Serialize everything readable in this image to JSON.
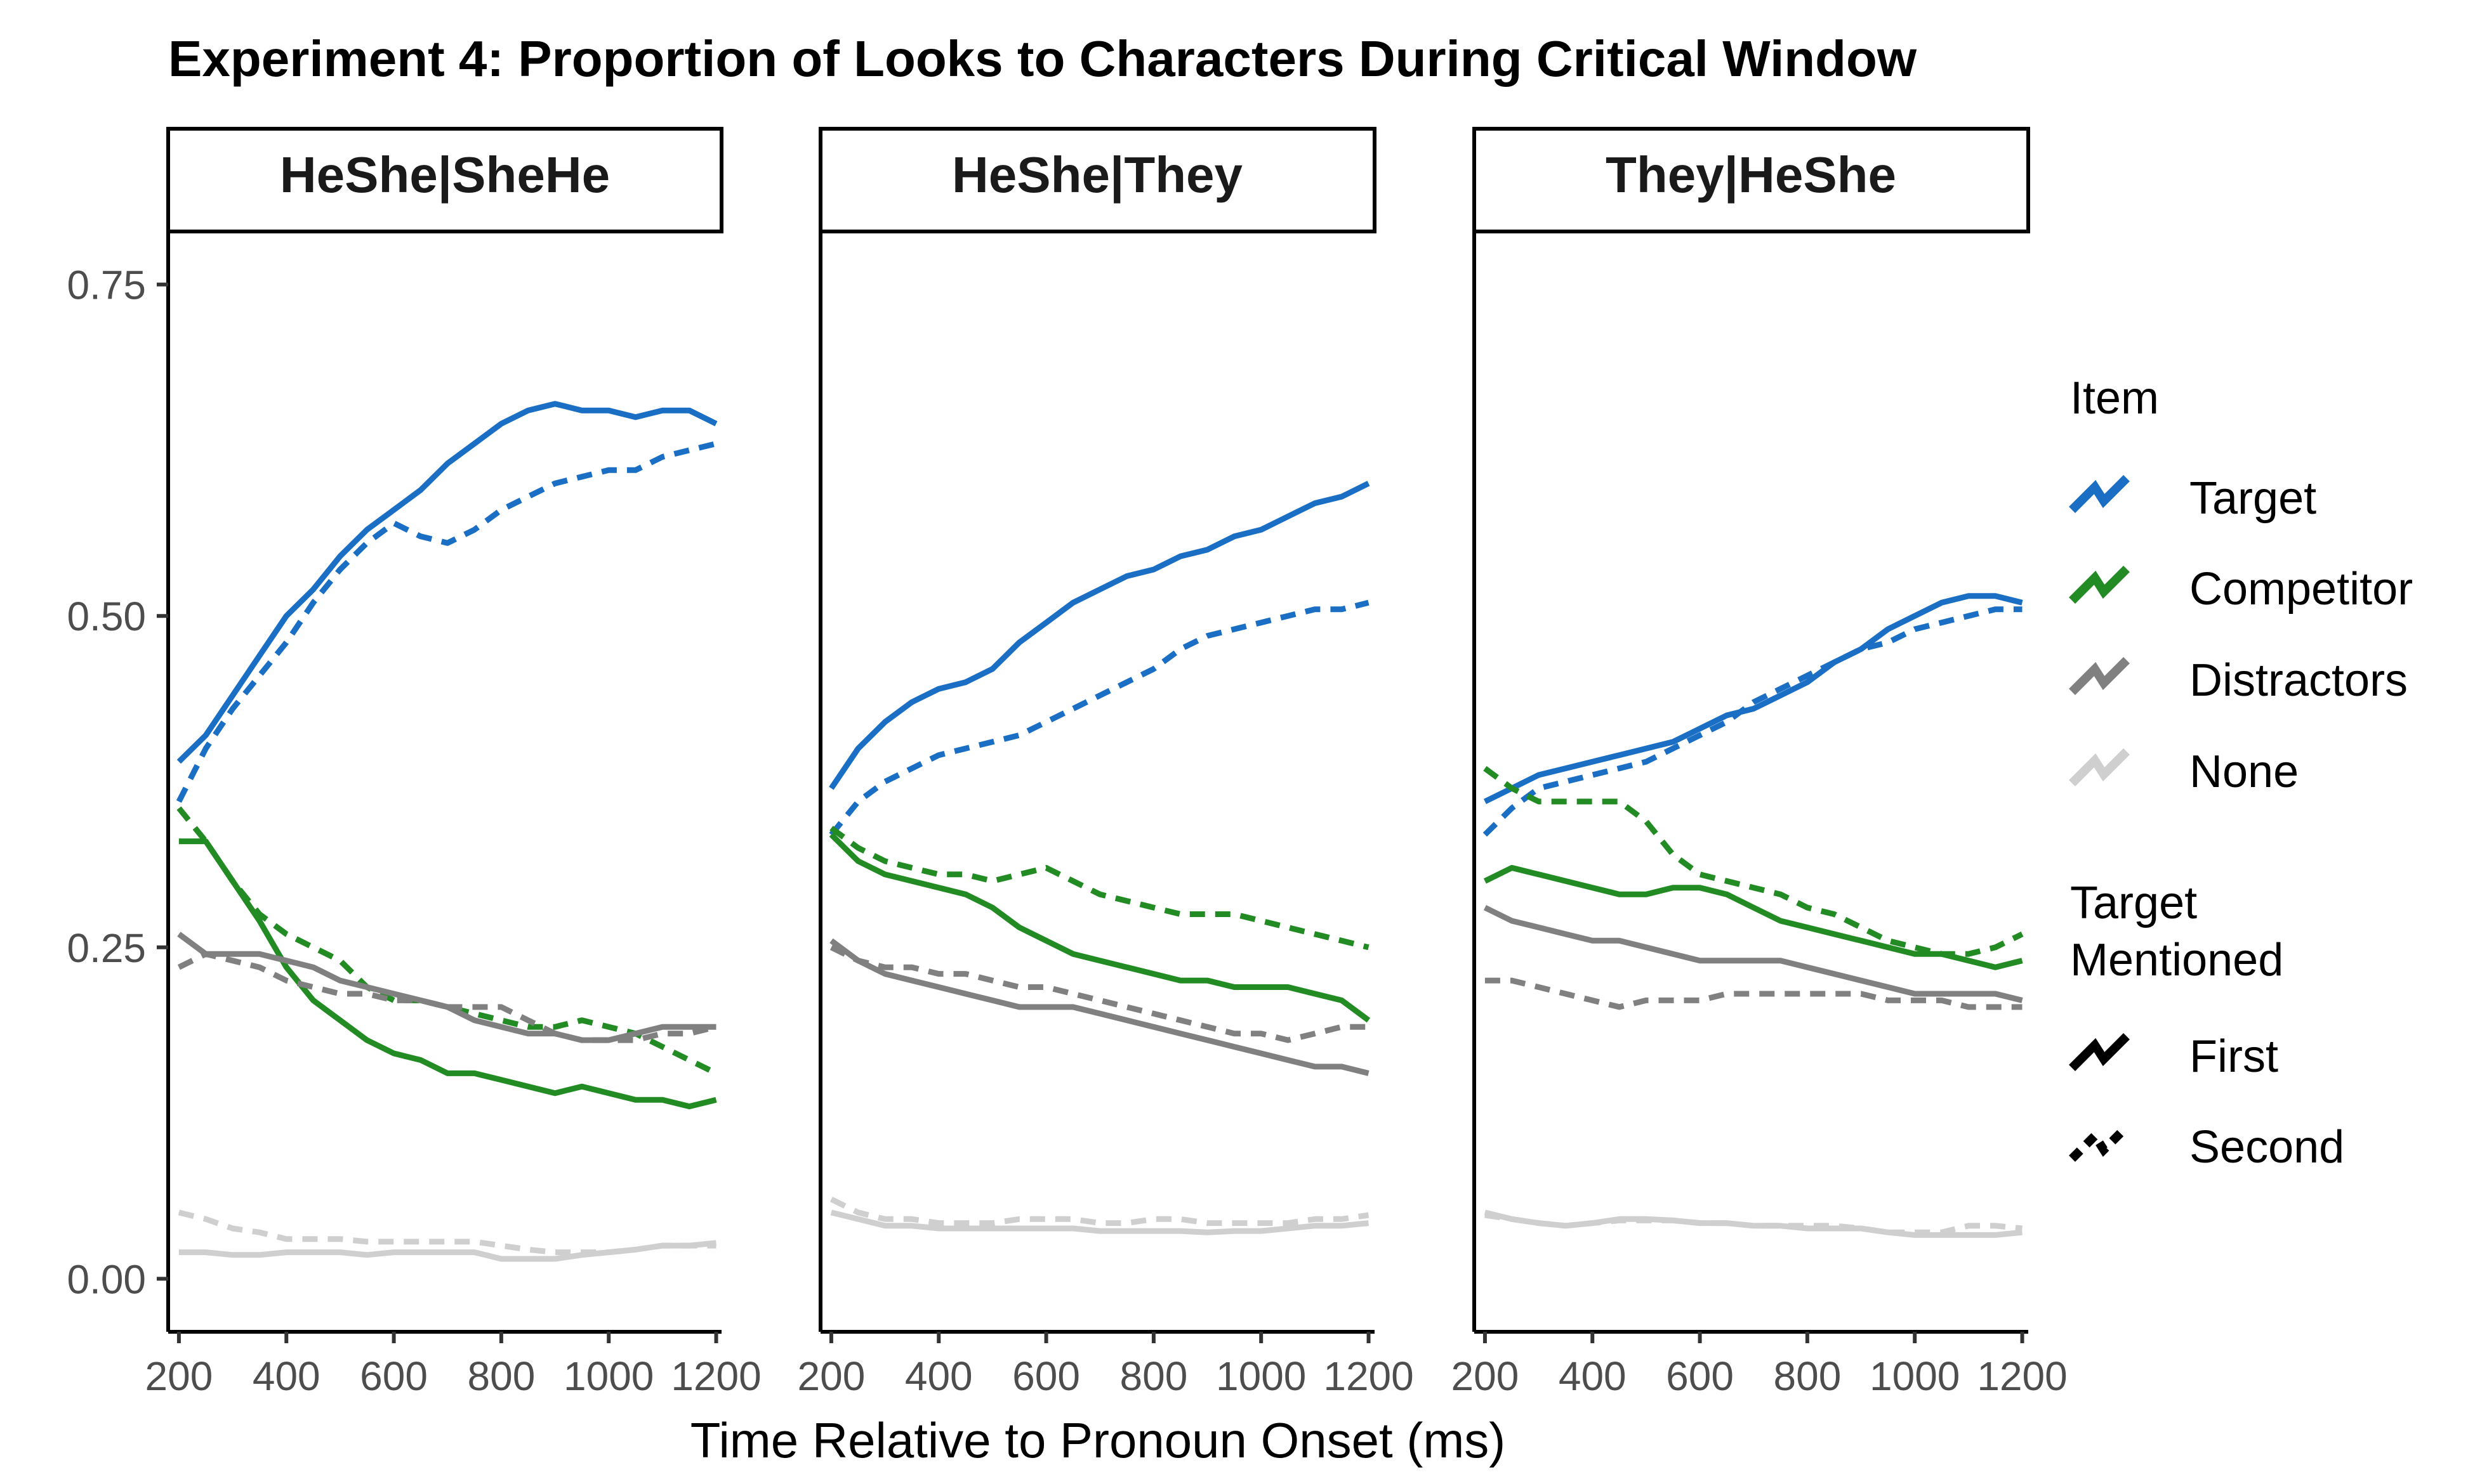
{
  "chart_data": {
    "type": "line",
    "title": "Experiment 4: Proportion of Looks to Characters During Critical Window",
    "xlabel": "Time Relative to Pronoun Onset (ms)",
    "ylabel": "",
    "xlim": [
      180,
      1210
    ],
    "ylim": [
      -0.04,
      0.79
    ],
    "x_ticks": [
      200,
      400,
      600,
      800,
      1000,
      1200
    ],
    "x_tick_labels": [
      "200",
      "400",
      "600",
      "800",
      "1000",
      "1200"
    ],
    "y_ticks": [
      0.0,
      0.25,
      0.5,
      0.75
    ],
    "y_tick_labels": [
      "0.00",
      "0.25",
      "0.50",
      "0.75"
    ],
    "grid": false,
    "legend_position": "right",
    "legend": {
      "item_title": "Item",
      "items": [
        {
          "label": "Target",
          "color": "#1a6fc4"
        },
        {
          "label": "Competitor",
          "color": "#238b23"
        },
        {
          "label": "Distractors",
          "color": "#808080"
        },
        {
          "label": "None",
          "color": "#cfcfcf"
        }
      ],
      "mention_title_line1": "Target",
      "mention_title_line2": "Mentioned",
      "mention": [
        {
          "label": "First",
          "dash": "solid"
        },
        {
          "label": "Second",
          "dash": "dashed"
        }
      ]
    },
    "x": [
      200,
      250,
      300,
      350,
      400,
      450,
      500,
      550,
      600,
      650,
      700,
      750,
      800,
      850,
      900,
      950,
      1000,
      1050,
      1100,
      1150,
      1200
    ],
    "panels": [
      {
        "label": "HeShe|SheHe",
        "series": [
          {
            "item": "Target",
            "mentioned": "First",
            "values": [
              0.39,
              0.41,
              0.44,
              0.47,
              0.5,
              0.52,
              0.545,
              0.565,
              0.58,
              0.595,
              0.615,
              0.63,
              0.645,
              0.655,
              0.66,
              0.655,
              0.655,
              0.65,
              0.655,
              0.655,
              0.645
            ]
          },
          {
            "item": "Target",
            "mentioned": "Second",
            "values": [
              0.36,
              0.4,
              0.43,
              0.455,
              0.48,
              0.51,
              0.535,
              0.555,
              0.57,
              0.56,
              0.555,
              0.565,
              0.58,
              0.59,
              0.6,
              0.605,
              0.61,
              0.61,
              0.62,
              0.625,
              0.63
            ]
          },
          {
            "item": "Competitor",
            "mentioned": "First",
            "values": [
              0.33,
              0.33,
              0.3,
              0.27,
              0.235,
              0.21,
              0.195,
              0.18,
              0.17,
              0.165,
              0.155,
              0.155,
              0.15,
              0.145,
              0.14,
              0.145,
              0.14,
              0.135,
              0.135,
              0.13,
              0.135
            ]
          },
          {
            "item": "Competitor",
            "mentioned": "Second",
            "values": [
              0.355,
              0.33,
              0.3,
              0.275,
              0.26,
              0.25,
              0.24,
              0.22,
              0.21,
              0.21,
              0.205,
              0.2,
              0.195,
              0.19,
              0.19,
              0.195,
              0.19,
              0.185,
              0.175,
              0.165,
              0.155
            ]
          },
          {
            "item": "Distractors",
            "mentioned": "First",
            "values": [
              0.26,
              0.245,
              0.245,
              0.245,
              0.24,
              0.235,
              0.225,
              0.22,
              0.215,
              0.21,
              0.205,
              0.195,
              0.19,
              0.185,
              0.185,
              0.18,
              0.18,
              0.185,
              0.19,
              0.19,
              0.19
            ]
          },
          {
            "item": "Distractors",
            "mentioned": "Second",
            "values": [
              0.235,
              0.245,
              0.24,
              0.235,
              0.225,
              0.22,
              0.215,
              0.215,
              0.21,
              0.21,
              0.205,
              0.205,
              0.205,
              0.195,
              0.185,
              0.18,
              0.18,
              0.18,
              0.185,
              0.185,
              0.19
            ]
          },
          {
            "item": "None",
            "mentioned": "First",
            "values": [
              0.02,
              0.02,
              0.018,
              0.018,
              0.02,
              0.02,
              0.02,
              0.018,
              0.02,
              0.02,
              0.02,
              0.02,
              0.015,
              0.015,
              0.015,
              0.018,
              0.02,
              0.022,
              0.025,
              0.025,
              0.027
            ]
          },
          {
            "item": "None",
            "mentioned": "Second",
            "values": [
              0.05,
              0.045,
              0.038,
              0.035,
              0.03,
              0.03,
              0.03,
              0.028,
              0.028,
              0.028,
              0.028,
              0.028,
              0.025,
              0.022,
              0.02,
              0.02,
              0.02,
              0.022,
              0.025,
              0.025,
              0.025
            ]
          }
        ]
      },
      {
        "label": "HeShe|They",
        "series": [
          {
            "item": "Target",
            "mentioned": "First",
            "values": [
              0.37,
              0.4,
              0.42,
              0.435,
              0.445,
              0.45,
              0.46,
              0.48,
              0.495,
              0.51,
              0.52,
              0.53,
              0.535,
              0.545,
              0.55,
              0.56,
              0.565,
              0.575,
              0.585,
              0.59,
              0.6
            ]
          },
          {
            "item": "Target",
            "mentioned": "Second",
            "values": [
              0.335,
              0.36,
              0.375,
              0.385,
              0.395,
              0.4,
              0.405,
              0.41,
              0.42,
              0.43,
              0.44,
              0.45,
              0.46,
              0.475,
              0.485,
              0.49,
              0.495,
              0.5,
              0.505,
              0.505,
              0.51
            ]
          },
          {
            "item": "Competitor",
            "mentioned": "First",
            "values": [
              0.335,
              0.315,
              0.305,
              0.3,
              0.295,
              0.29,
              0.28,
              0.265,
              0.255,
              0.245,
              0.24,
              0.235,
              0.23,
              0.225,
              0.225,
              0.22,
              0.22,
              0.22,
              0.215,
              0.21,
              0.195
            ]
          },
          {
            "item": "Competitor",
            "mentioned": "Second",
            "values": [
              0.34,
              0.325,
              0.315,
              0.31,
              0.305,
              0.305,
              0.3,
              0.305,
              0.31,
              0.3,
              0.29,
              0.285,
              0.28,
              0.275,
              0.275,
              0.275,
              0.27,
              0.265,
              0.26,
              0.255,
              0.25
            ]
          },
          {
            "item": "Distractors",
            "mentioned": "First",
            "values": [
              0.255,
              0.24,
              0.23,
              0.225,
              0.22,
              0.215,
              0.21,
              0.205,
              0.205,
              0.205,
              0.2,
              0.195,
              0.19,
              0.185,
              0.18,
              0.175,
              0.17,
              0.165,
              0.16,
              0.16,
              0.155
            ]
          },
          {
            "item": "Distractors",
            "mentioned": "Second",
            "values": [
              0.25,
              0.24,
              0.235,
              0.235,
              0.23,
              0.23,
              0.225,
              0.22,
              0.22,
              0.215,
              0.21,
              0.205,
              0.2,
              0.195,
              0.19,
              0.185,
              0.185,
              0.18,
              0.185,
              0.19,
              0.19
            ]
          },
          {
            "item": "None",
            "mentioned": "First",
            "values": [
              0.05,
              0.045,
              0.04,
              0.04,
              0.038,
              0.038,
              0.038,
              0.038,
              0.038,
              0.038,
              0.036,
              0.036,
              0.036,
              0.036,
              0.035,
              0.036,
              0.036,
              0.038,
              0.04,
              0.04,
              0.042
            ]
          },
          {
            "item": "None",
            "mentioned": "Second",
            "values": [
              0.06,
              0.05,
              0.045,
              0.045,
              0.042,
              0.042,
              0.042,
              0.045,
              0.045,
              0.045,
              0.042,
              0.042,
              0.045,
              0.045,
              0.042,
              0.042,
              0.042,
              0.042,
              0.045,
              0.045,
              0.048
            ]
          }
        ]
      },
      {
        "label": "They|HeShe",
        "series": [
          {
            "item": "Target",
            "mentioned": "First",
            "values": [
              0.36,
              0.37,
              0.38,
              0.385,
              0.39,
              0.395,
              0.4,
              0.405,
              0.415,
              0.425,
              0.43,
              0.44,
              0.45,
              0.465,
              0.475,
              0.49,
              0.5,
              0.51,
              0.515,
              0.515,
              0.51
            ]
          },
          {
            "item": "Target",
            "mentioned": "Second",
            "values": [
              0.335,
              0.355,
              0.37,
              0.375,
              0.38,
              0.385,
              0.39,
              0.4,
              0.41,
              0.42,
              0.435,
              0.445,
              0.455,
              0.465,
              0.475,
              0.48,
              0.49,
              0.495,
              0.5,
              0.505,
              0.505
            ]
          },
          {
            "item": "Competitor",
            "mentioned": "First",
            "values": [
              0.3,
              0.31,
              0.305,
              0.3,
              0.295,
              0.29,
              0.29,
              0.295,
              0.295,
              0.29,
              0.28,
              0.27,
              0.265,
              0.26,
              0.255,
              0.25,
              0.245,
              0.245,
              0.24,
              0.235,
              0.24
            ]
          },
          {
            "item": "Competitor",
            "mentioned": "Second",
            "values": [
              0.385,
              0.37,
              0.36,
              0.36,
              0.36,
              0.36,
              0.345,
              0.32,
              0.305,
              0.3,
              0.295,
              0.29,
              0.28,
              0.275,
              0.265,
              0.255,
              0.25,
              0.245,
              0.245,
              0.25,
              0.26
            ]
          },
          {
            "item": "Distractors",
            "mentioned": "First",
            "values": [
              0.28,
              0.27,
              0.265,
              0.26,
              0.255,
              0.255,
              0.25,
              0.245,
              0.24,
              0.24,
              0.24,
              0.24,
              0.235,
              0.23,
              0.225,
              0.22,
              0.215,
              0.215,
              0.215,
              0.215,
              0.21
            ]
          },
          {
            "item": "Distractors",
            "mentioned": "Second",
            "values": [
              0.225,
              0.225,
              0.22,
              0.215,
              0.21,
              0.205,
              0.21,
              0.21,
              0.21,
              0.215,
              0.215,
              0.215,
              0.215,
              0.215,
              0.215,
              0.21,
              0.21,
              0.21,
              0.205,
              0.205,
              0.205
            ]
          },
          {
            "item": "None",
            "mentioned": "First",
            "values": [
              0.05,
              0.045,
              0.042,
              0.04,
              0.042,
              0.045,
              0.045,
              0.044,
              0.042,
              0.042,
              0.04,
              0.04,
              0.038,
              0.038,
              0.038,
              0.035,
              0.033,
              0.033,
              0.033,
              0.033,
              0.035
            ]
          },
          {
            "item": "None",
            "mentioned": "Second",
            "values": [
              0.048,
              0.045,
              0.042,
              0.04,
              0.042,
              0.044,
              0.044,
              0.044,
              0.042,
              0.042,
              0.04,
              0.04,
              0.04,
              0.04,
              0.038,
              0.035,
              0.035,
              0.035,
              0.04,
              0.04,
              0.038
            ]
          }
        ]
      }
    ]
  }
}
